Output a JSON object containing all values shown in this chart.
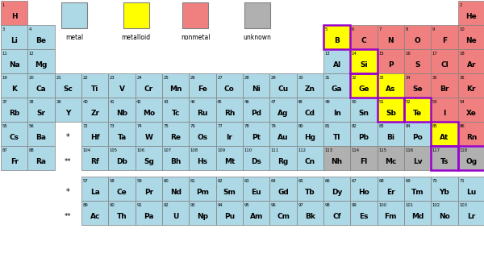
{
  "bg_color": "#ffffff",
  "type_colors": {
    "nonmetal": "#f08080",
    "metal": "#add8e6",
    "metalloid": "#ffff00",
    "unknown": "#b0b0b0"
  },
  "highlight_border": "#9900cc",
  "grid_border": "#808080",
  "elements_main": [
    {
      "sym": "H",
      "num": 1,
      "row": 0,
      "col": 0,
      "type": "nonmetal"
    },
    {
      "sym": "He",
      "num": 2,
      "row": 0,
      "col": 17,
      "type": "nonmetal"
    },
    {
      "sym": "Li",
      "num": 3,
      "row": 1,
      "col": 0,
      "type": "metal"
    },
    {
      "sym": "Be",
      "num": 4,
      "row": 1,
      "col": 1,
      "type": "metal"
    },
    {
      "sym": "B",
      "num": 5,
      "row": 1,
      "col": 12,
      "type": "metalloid",
      "hl": true
    },
    {
      "sym": "C",
      "num": 6,
      "row": 1,
      "col": 13,
      "type": "nonmetal"
    },
    {
      "sym": "N",
      "num": 7,
      "row": 1,
      "col": 14,
      "type": "nonmetal"
    },
    {
      "sym": "O",
      "num": 8,
      "row": 1,
      "col": 15,
      "type": "nonmetal"
    },
    {
      "sym": "F",
      "num": 9,
      "row": 1,
      "col": 16,
      "type": "nonmetal"
    },
    {
      "sym": "Ne",
      "num": 10,
      "row": 1,
      "col": 17,
      "type": "nonmetal"
    },
    {
      "sym": "Na",
      "num": 11,
      "row": 2,
      "col": 0,
      "type": "metal"
    },
    {
      "sym": "Mg",
      "num": 12,
      "row": 2,
      "col": 1,
      "type": "metal"
    },
    {
      "sym": "Al",
      "num": 13,
      "row": 2,
      "col": 12,
      "type": "metal"
    },
    {
      "sym": "Si",
      "num": 14,
      "row": 2,
      "col": 13,
      "type": "metalloid",
      "hl": true
    },
    {
      "sym": "P",
      "num": 15,
      "row": 2,
      "col": 14,
      "type": "nonmetal"
    },
    {
      "sym": "S",
      "num": 16,
      "row": 2,
      "col": 15,
      "type": "nonmetal"
    },
    {
      "sym": "Cl",
      "num": 17,
      "row": 2,
      "col": 16,
      "type": "nonmetal"
    },
    {
      "sym": "Ar",
      "num": 18,
      "row": 2,
      "col": 17,
      "type": "nonmetal"
    },
    {
      "sym": "K",
      "num": 19,
      "row": 3,
      "col": 0,
      "type": "metal"
    },
    {
      "sym": "Ca",
      "num": 20,
      "row": 3,
      "col": 1,
      "type": "metal"
    },
    {
      "sym": "Sc",
      "num": 21,
      "row": 3,
      "col": 2,
      "type": "metal"
    },
    {
      "sym": "Ti",
      "num": 22,
      "row": 3,
      "col": 3,
      "type": "metal"
    },
    {
      "sym": "V",
      "num": 23,
      "row": 3,
      "col": 4,
      "type": "metal"
    },
    {
      "sym": "Cr",
      "num": 24,
      "row": 3,
      "col": 5,
      "type": "metal"
    },
    {
      "sym": "Mn",
      "num": 25,
      "row": 3,
      "col": 6,
      "type": "metal"
    },
    {
      "sym": "Fe",
      "num": 26,
      "row": 3,
      "col": 7,
      "type": "metal"
    },
    {
      "sym": "Co",
      "num": 27,
      "row": 3,
      "col": 8,
      "type": "metal"
    },
    {
      "sym": "Ni",
      "num": 28,
      "row": 3,
      "col": 9,
      "type": "metal"
    },
    {
      "sym": "Cu",
      "num": 29,
      "row": 3,
      "col": 10,
      "type": "metal"
    },
    {
      "sym": "Zn",
      "num": 30,
      "row": 3,
      "col": 11,
      "type": "metal"
    },
    {
      "sym": "Ga",
      "num": 31,
      "row": 3,
      "col": 12,
      "type": "metal"
    },
    {
      "sym": "Ge",
      "num": 32,
      "row": 3,
      "col": 13,
      "type": "metalloid",
      "hl": true
    },
    {
      "sym": "As",
      "num": 33,
      "row": 3,
      "col": 14,
      "type": "metalloid"
    },
    {
      "sym": "Se",
      "num": 34,
      "row": 3,
      "col": 15,
      "type": "nonmetal"
    },
    {
      "sym": "Br",
      "num": 35,
      "row": 3,
      "col": 16,
      "type": "nonmetal"
    },
    {
      "sym": "Kr",
      "num": 36,
      "row": 3,
      "col": 17,
      "type": "nonmetal"
    },
    {
      "sym": "Rb",
      "num": 37,
      "row": 4,
      "col": 0,
      "type": "metal"
    },
    {
      "sym": "Sr",
      "num": 38,
      "row": 4,
      "col": 1,
      "type": "metal"
    },
    {
      "sym": "Y",
      "num": 39,
      "row": 4,
      "col": 2,
      "type": "metal"
    },
    {
      "sym": "Zr",
      "num": 40,
      "row": 4,
      "col": 3,
      "type": "metal"
    },
    {
      "sym": "Nb",
      "num": 41,
      "row": 4,
      "col": 4,
      "type": "metal"
    },
    {
      "sym": "Mo",
      "num": 42,
      "row": 4,
      "col": 5,
      "type": "metal"
    },
    {
      "sym": "Tc",
      "num": 43,
      "row": 4,
      "col": 6,
      "type": "metal"
    },
    {
      "sym": "Ru",
      "num": 44,
      "row": 4,
      "col": 7,
      "type": "metal"
    },
    {
      "sym": "Rh",
      "num": 45,
      "row": 4,
      "col": 8,
      "type": "metal"
    },
    {
      "sym": "Pd",
      "num": 46,
      "row": 4,
      "col": 9,
      "type": "metal"
    },
    {
      "sym": "Ag",
      "num": 47,
      "row": 4,
      "col": 10,
      "type": "metal"
    },
    {
      "sym": "Cd",
      "num": 48,
      "row": 4,
      "col": 11,
      "type": "metal"
    },
    {
      "sym": "In",
      "num": 49,
      "row": 4,
      "col": 12,
      "type": "metal"
    },
    {
      "sym": "Sn",
      "num": 50,
      "row": 4,
      "col": 13,
      "type": "metal"
    },
    {
      "sym": "Sb",
      "num": 51,
      "row": 4,
      "col": 14,
      "type": "metalloid",
      "hl": true
    },
    {
      "sym": "Te",
      "num": 52,
      "row": 4,
      "col": 15,
      "type": "metalloid",
      "hl": true
    },
    {
      "sym": "I",
      "num": 53,
      "row": 4,
      "col": 16,
      "type": "nonmetal"
    },
    {
      "sym": "Xe",
      "num": 54,
      "row": 4,
      "col": 17,
      "type": "nonmetal"
    },
    {
      "sym": "Cs",
      "num": 55,
      "row": 5,
      "col": 0,
      "type": "metal"
    },
    {
      "sym": "Ba",
      "num": 56,
      "row": 5,
      "col": 1,
      "type": "metal"
    },
    {
      "sym": "Hf",
      "num": 72,
      "row": 5,
      "col": 3,
      "type": "metal"
    },
    {
      "sym": "Ta",
      "num": 73,
      "row": 5,
      "col": 4,
      "type": "metal"
    },
    {
      "sym": "W",
      "num": 74,
      "row": 5,
      "col": 5,
      "type": "metal"
    },
    {
      "sym": "Re",
      "num": 75,
      "row": 5,
      "col": 6,
      "type": "metal"
    },
    {
      "sym": "Os",
      "num": 76,
      "row": 5,
      "col": 7,
      "type": "metal"
    },
    {
      "sym": "Ir",
      "num": 77,
      "row": 5,
      "col": 8,
      "type": "metal"
    },
    {
      "sym": "Pt",
      "num": 78,
      "row": 5,
      "col": 9,
      "type": "metal"
    },
    {
      "sym": "Au",
      "num": 79,
      "row": 5,
      "col": 10,
      "type": "metal"
    },
    {
      "sym": "Hg",
      "num": 80,
      "row": 5,
      "col": 11,
      "type": "metal"
    },
    {
      "sym": "Tl",
      "num": 81,
      "row": 5,
      "col": 12,
      "type": "metal"
    },
    {
      "sym": "Pb",
      "num": 82,
      "row": 5,
      "col": 13,
      "type": "metal"
    },
    {
      "sym": "Bi",
      "num": 83,
      "row": 5,
      "col": 14,
      "type": "metal"
    },
    {
      "sym": "Po",
      "num": 84,
      "row": 5,
      "col": 15,
      "type": "metal"
    },
    {
      "sym": "At",
      "num": 85,
      "row": 5,
      "col": 16,
      "type": "metalloid",
      "hl": true
    },
    {
      "sym": "Rn",
      "num": 86,
      "row": 5,
      "col": 17,
      "type": "nonmetal"
    },
    {
      "sym": "Fr",
      "num": 87,
      "row": 6,
      "col": 0,
      "type": "metal"
    },
    {
      "sym": "Ra",
      "num": 88,
      "row": 6,
      "col": 1,
      "type": "metal"
    },
    {
      "sym": "Rf",
      "num": 104,
      "row": 6,
      "col": 3,
      "type": "metal"
    },
    {
      "sym": "Db",
      "num": 105,
      "row": 6,
      "col": 4,
      "type": "metal"
    },
    {
      "sym": "Sg",
      "num": 106,
      "row": 6,
      "col": 5,
      "type": "metal"
    },
    {
      "sym": "Bh",
      "num": 107,
      "row": 6,
      "col": 6,
      "type": "metal"
    },
    {
      "sym": "Hs",
      "num": 108,
      "row": 6,
      "col": 7,
      "type": "metal"
    },
    {
      "sym": "Mt",
      "num": 109,
      "row": 6,
      "col": 8,
      "type": "metal"
    },
    {
      "sym": "Ds",
      "num": 110,
      "row": 6,
      "col": 9,
      "type": "metal"
    },
    {
      "sym": "Rg",
      "num": 111,
      "row": 6,
      "col": 10,
      "type": "metal"
    },
    {
      "sym": "Cn",
      "num": 112,
      "row": 6,
      "col": 11,
      "type": "metal"
    },
    {
      "sym": "Nh",
      "num": 113,
      "row": 6,
      "col": 12,
      "type": "unknown"
    },
    {
      "sym": "Fl",
      "num": 114,
      "row": 6,
      "col": 13,
      "type": "unknown"
    },
    {
      "sym": "Mc",
      "num": 115,
      "row": 6,
      "col": 14,
      "type": "unknown"
    },
    {
      "sym": "Lv",
      "num": 116,
      "row": 6,
      "col": 15,
      "type": "unknown"
    },
    {
      "sym": "Ts",
      "num": 117,
      "row": 6,
      "col": 16,
      "type": "unknown",
      "hl": true
    },
    {
      "sym": "Og",
      "num": 118,
      "row": 6,
      "col": 17,
      "type": "unknown",
      "hl": true
    }
  ],
  "elements_lan": [
    {
      "sym": "La",
      "num": 57,
      "col": 0,
      "type": "metal"
    },
    {
      "sym": "Ce",
      "num": 58,
      "col": 1,
      "type": "metal"
    },
    {
      "sym": "Pr",
      "num": 59,
      "col": 2,
      "type": "metal"
    },
    {
      "sym": "Nd",
      "num": 60,
      "col": 3,
      "type": "metal"
    },
    {
      "sym": "Pm",
      "num": 61,
      "col": 4,
      "type": "metal"
    },
    {
      "sym": "Sm",
      "num": 62,
      "col": 5,
      "type": "metal"
    },
    {
      "sym": "Eu",
      "num": 63,
      "col": 6,
      "type": "metal"
    },
    {
      "sym": "Gd",
      "num": 64,
      "col": 7,
      "type": "metal"
    },
    {
      "sym": "Tb",
      "num": 65,
      "col": 8,
      "type": "metal"
    },
    {
      "sym": "Dy",
      "num": 66,
      "col": 9,
      "type": "metal"
    },
    {
      "sym": "Ho",
      "num": 67,
      "col": 10,
      "type": "metal"
    },
    {
      "sym": "Er",
      "num": 68,
      "col": 11,
      "type": "metal"
    },
    {
      "sym": "Tm",
      "num": 69,
      "col": 12,
      "type": "metal"
    },
    {
      "sym": "Yb",
      "num": 70,
      "col": 13,
      "type": "metal"
    },
    {
      "sym": "Lu",
      "num": 71,
      "col": 14,
      "type": "metal"
    }
  ],
  "elements_act": [
    {
      "sym": "Ac",
      "num": 89,
      "col": 0,
      "type": "metal"
    },
    {
      "sym": "Th",
      "num": 90,
      "col": 1,
      "type": "metal"
    },
    {
      "sym": "Pa",
      "num": 91,
      "col": 2,
      "type": "metal"
    },
    {
      "sym": "U",
      "num": 92,
      "col": 3,
      "type": "metal"
    },
    {
      "sym": "Np",
      "num": 93,
      "col": 4,
      "type": "metal"
    },
    {
      "sym": "Pu",
      "num": 94,
      "col": 5,
      "type": "metal"
    },
    {
      "sym": "Am",
      "num": 95,
      "col": 6,
      "type": "metal"
    },
    {
      "sym": "Cm",
      "num": 96,
      "col": 7,
      "type": "metal"
    },
    {
      "sym": "Bk",
      "num": 97,
      "col": 8,
      "type": "metal"
    },
    {
      "sym": "Cf",
      "num": 98,
      "col": 9,
      "type": "metal"
    },
    {
      "sym": "Es",
      "num": 99,
      "col": 10,
      "type": "metal"
    },
    {
      "sym": "Fm",
      "num": 100,
      "col": 11,
      "type": "metal"
    },
    {
      "sym": "Md",
      "num": 101,
      "col": 12,
      "type": "metal"
    },
    {
      "sym": "No",
      "num": 102,
      "col": 13,
      "type": "metal"
    },
    {
      "sym": "Lr",
      "num": 103,
      "col": 14,
      "type": "metal"
    }
  ],
  "legend_items": [
    {
      "label": "metal",
      "color": "#add8e6"
    },
    {
      "label": "metalloid",
      "color": "#ffff00"
    },
    {
      "label": "nonmetal",
      "color": "#f08080"
    },
    {
      "label": "unknown",
      "color": "#b0b0b0"
    }
  ]
}
